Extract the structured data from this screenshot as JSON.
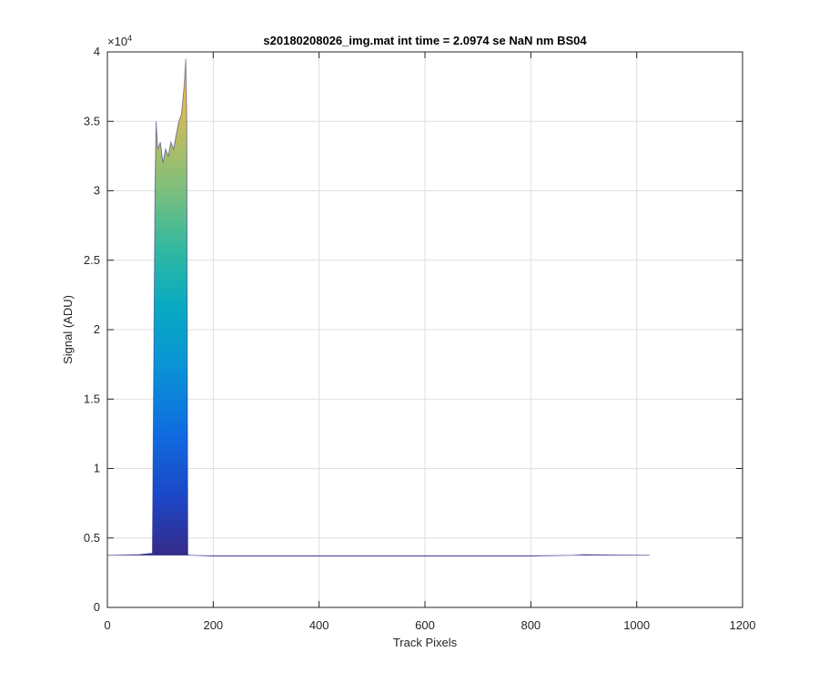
{
  "chart_data": {
    "type": "line",
    "title": "s20180208026_img.mat int time = 2.0974 se  NaN nm BS04",
    "xlabel": "Track Pixels",
    "ylabel": "Signal (ADU)",
    "y_exponent_label": "×10",
    "y_exponent_power": "4",
    "xlim": [
      0,
      1200
    ],
    "ylim": [
      0,
      40000
    ],
    "x_ticks": [
      0,
      200,
      400,
      600,
      800,
      1000,
      1200
    ],
    "x_tick_labels": [
      "0",
      "200",
      "400",
      "600",
      "800",
      "1000",
      "1200"
    ],
    "y_ticks": [
      0,
      5000,
      10000,
      15000,
      20000,
      25000,
      30000,
      35000,
      40000
    ],
    "y_tick_labels": [
      "0",
      "0.5",
      "1",
      "1.5",
      "2",
      "2.5",
      "3",
      "3.5",
      "4"
    ],
    "grid": true,
    "colormap": "parula",
    "baseline_signal": 3750,
    "series_upper_envelope": {
      "x": [
        0,
        60,
        85,
        90,
        92,
        95,
        100,
        105,
        110,
        115,
        120,
        125,
        130,
        135,
        140,
        145,
        148,
        150,
        152,
        155,
        160,
        200,
        400,
        600,
        800,
        880,
        900,
        950,
        1000,
        1024
      ],
      "y": [
        3750,
        3800,
        3900,
        30000,
        35000,
        33000,
        33500,
        32000,
        33000,
        32500,
        33500,
        33000,
        34000,
        35000,
        35500,
        37500,
        39500,
        35000,
        3800,
        3750,
        3750,
        3700,
        3700,
        3700,
        3700,
        3750,
        3800,
        3780,
        3760,
        3750
      ]
    }
  }
}
